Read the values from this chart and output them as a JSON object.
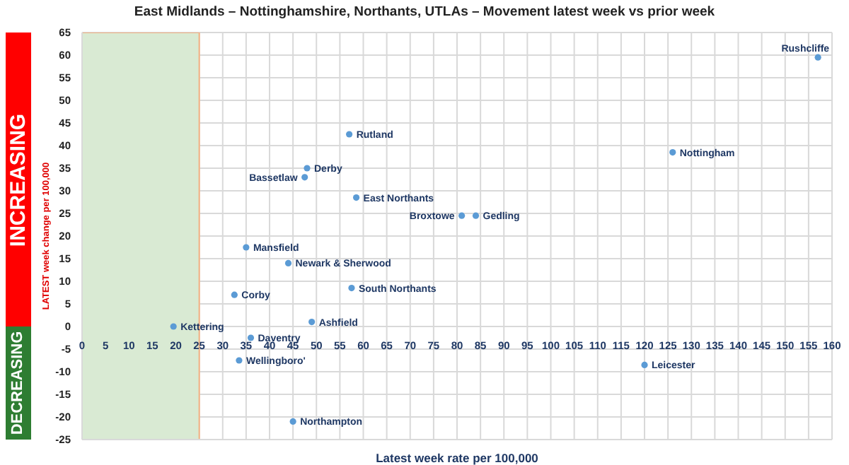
{
  "chart_data": {
    "type": "scatter",
    "title": "East Midlands – Nottinghamshire, Northants, UTLAs – Movement latest week vs prior week",
    "xlabel": "Latest week rate per 100,000",
    "ylabel": "LATEST week change per 100,000",
    "annotations": [
      "INCREASING",
      "DECREASING"
    ],
    "series": [
      {
        "color": "#5b9bd5",
        "x": [
          157,
          126,
          57,
          48,
          47.5,
          58.5,
          81,
          84,
          35,
          44,
          57.5,
          32.5,
          19.5,
          49,
          36,
          33.5,
          45,
          120
        ],
        "values": [
          59.5,
          38.5,
          42.5,
          35,
          33,
          28.5,
          24.5,
          24.5,
          17.5,
          14,
          8.5,
          7,
          0,
          1,
          -2.5,
          -7.5,
          -21,
          -8.5
        ],
        "value_labels": [
          "Rushcliffe",
          "Nottingham",
          "Rutland",
          "Derby",
          "Bassetlaw",
          "East Northants",
          "Broxtowe",
          "Gedling",
          "Mansfield",
          "Newark & Sherwood",
          "South Northants",
          "Corby",
          "Kettering",
          "Ashfield",
          "Daventry",
          "Wellingboro'",
          "Northampton",
          "Leicester"
        ]
      }
    ],
    "xlim": [
      0,
      160
    ],
    "xticks": [
      0,
      5,
      10,
      15,
      20,
      25,
      30,
      35,
      40,
      45,
      50,
      55,
      60,
      65,
      70,
      75,
      80,
      85,
      90,
      95,
      100,
      105,
      110,
      115,
      120,
      125,
      130,
      135,
      140,
      145,
      150,
      155,
      160
    ],
    "ylim": [
      -25,
      65
    ],
    "yticks": [
      -25,
      -20,
      -15,
      -10,
      -5,
      0,
      5,
      10,
      15,
      20,
      25,
      30,
      35,
      40,
      45,
      50,
      55,
      60,
      65
    ],
    "bands": [
      {
        "axis": "x",
        "from": 0,
        "to": 25,
        "color": "#d9ead3"
      }
    ],
    "grid": true,
    "legend": false,
    "marker": "circle"
  }
}
